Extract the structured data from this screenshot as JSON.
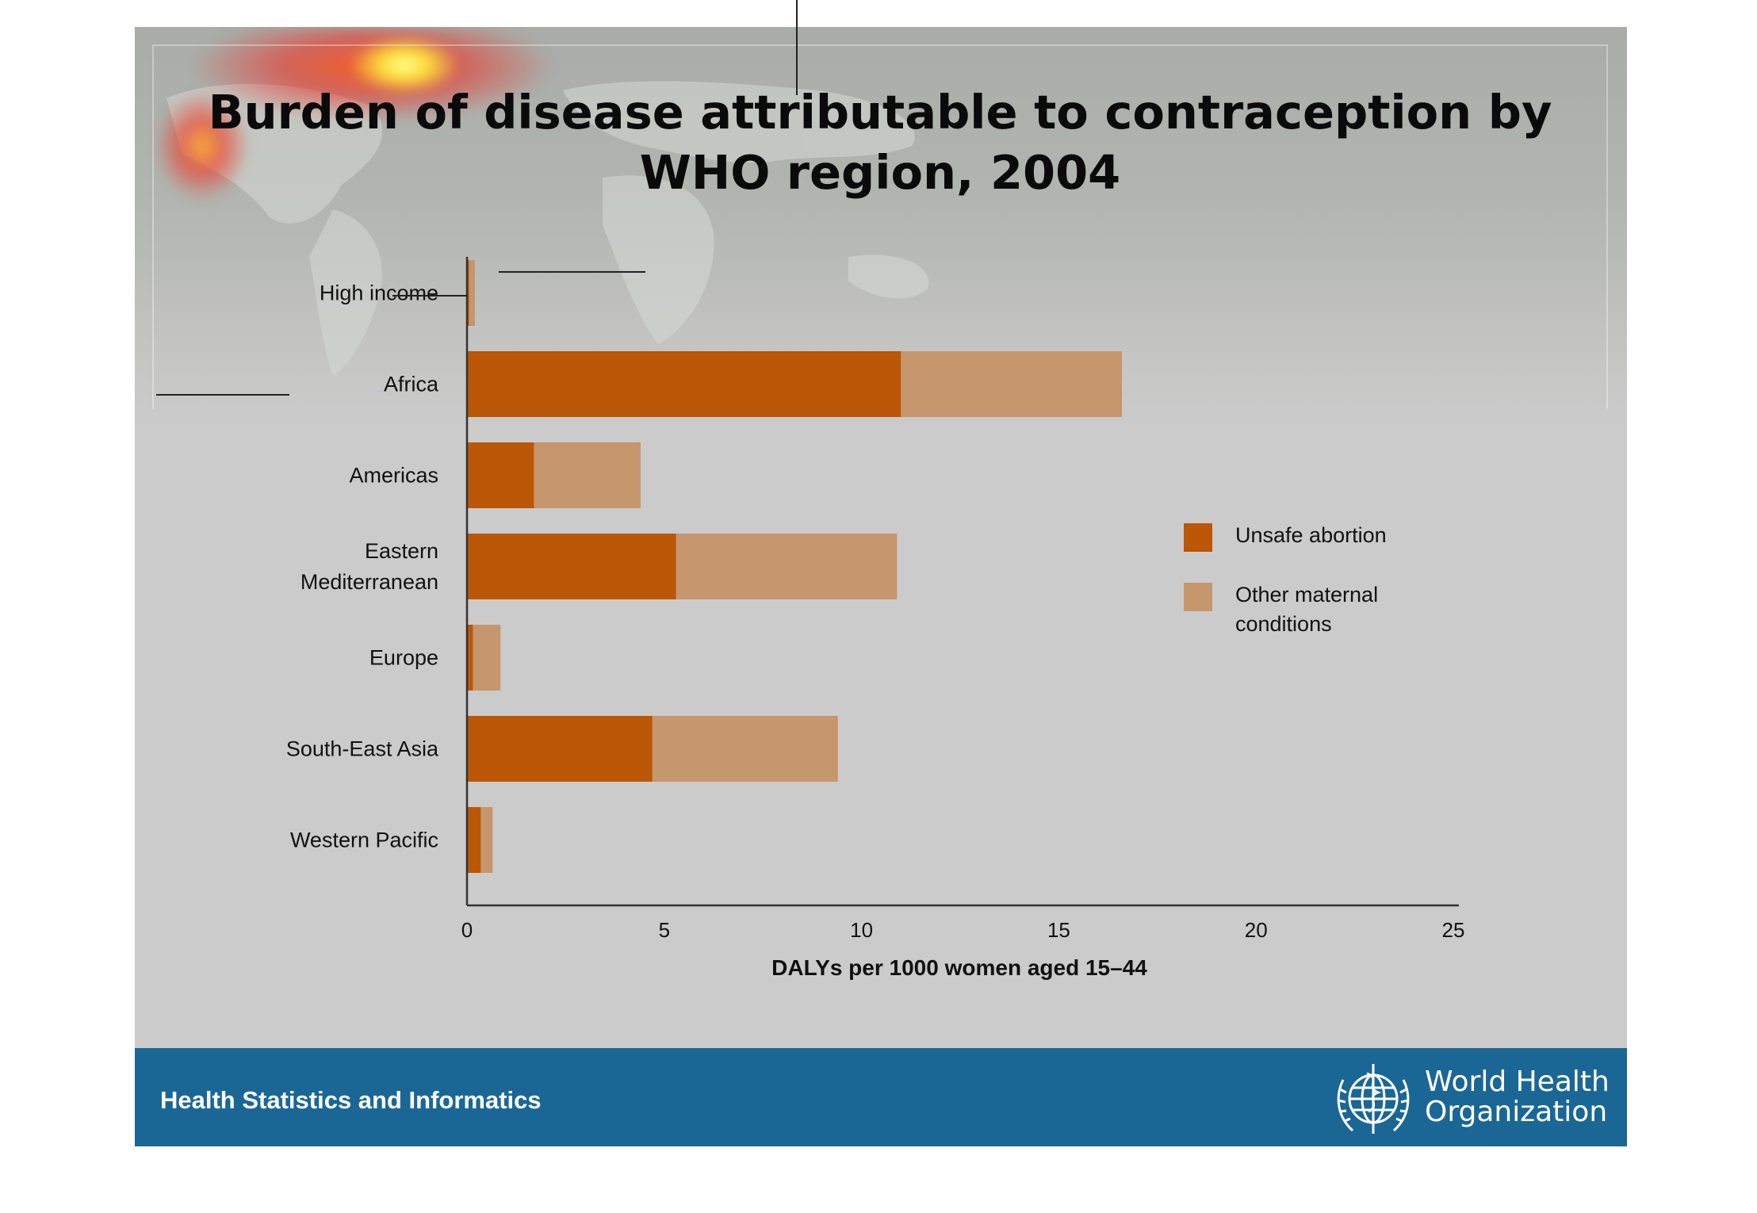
{
  "slide": {
    "title": "Burden of disease attributable to contraception by WHO region, 2004",
    "title_lines": [
      "Burden of disease attributable to contraception by",
      "WHO region, 2004"
    ]
  },
  "footer": {
    "section_label": "Health Statistics and Informatics",
    "org_name_lines": [
      "World Health",
      "Organization"
    ]
  },
  "icons": {
    "logo": "who-emblem-icon",
    "background": "world-map-icon"
  },
  "colors": {
    "unsafe_abortion": "#bb5707",
    "other_maternal": "#c6966c",
    "footer": "#1a6796",
    "slide_bg": "#cbcbcb"
  },
  "chart_data": {
    "type": "bar",
    "orientation": "horizontal",
    "stacked": true,
    "categories": [
      "High income",
      "Africa",
      "Americas",
      "Eastern Mediterranean",
      "Europe",
      "South-East Asia",
      "Western Pacific"
    ],
    "category_label_lines": [
      [
        "High income"
      ],
      [
        "Africa"
      ],
      [
        "Americas"
      ],
      [
        "Eastern",
        "Mediterranean"
      ],
      [
        "Europe"
      ],
      [
        "South-East Asia"
      ],
      [
        "Western Pacific"
      ]
    ],
    "series": [
      {
        "name": "Unsafe abortion",
        "values": [
          0.05,
          11.0,
          1.7,
          5.3,
          0.15,
          4.7,
          0.35
        ]
      },
      {
        "name": "Other maternal conditions",
        "values": [
          0.15,
          5.6,
          2.7,
          5.6,
          0.7,
          4.7,
          0.3
        ]
      }
    ],
    "legend_labels": [
      [
        "Unsafe abortion"
      ],
      [
        "Other maternal",
        "conditions"
      ]
    ],
    "xlabel": "DALYs per 1000 women aged 15–44",
    "ylabel": "",
    "xlim": [
      0,
      25
    ],
    "xticks": [
      0,
      5,
      10,
      15,
      20,
      25
    ],
    "grid": false,
    "legend_position": "right"
  }
}
